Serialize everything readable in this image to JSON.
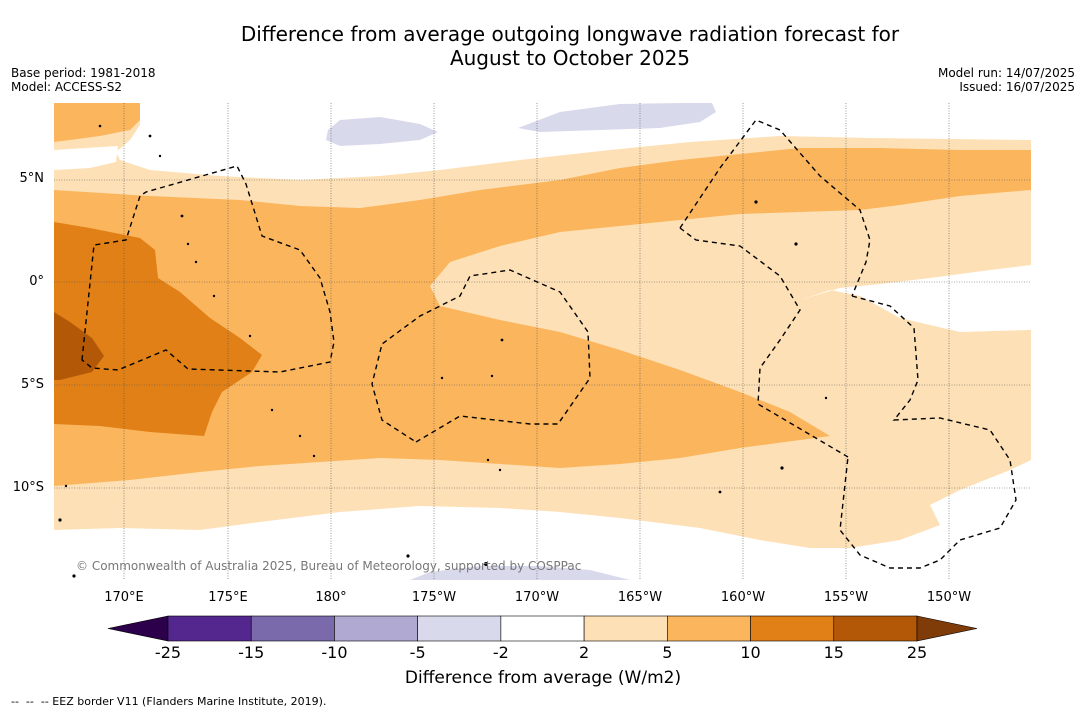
{
  "title": {
    "line1": "Difference from average outgoing longwave radiation forecast for",
    "line2": "August to October 2025"
  },
  "meta": {
    "base_period": "Base period: 1981-2018",
    "model": "Model: ACCESS-S2",
    "model_run": "Model run: 14/07/2025",
    "issued": "Issued: 16/07/2025"
  },
  "map": {
    "lat_labels": [
      "5°N",
      "0°",
      "5°S",
      "10°S"
    ],
    "lon_labels": [
      "170°E",
      "175°E",
      "180°",
      "175°W",
      "170°W",
      "165°W",
      "160°W",
      "155°W",
      "150°W"
    ],
    "copyright": "© Commonwealth of Australia 2025, Bureau of Meteorology, supported by COSPPac"
  },
  "colorbar": {
    "ticks": [
      "-25",
      "-15",
      "-10",
      "-5",
      "-2",
      "2",
      "5",
      "10",
      "15",
      "25"
    ],
    "colors": [
      "#54278f",
      "#7b6aab",
      "#b0a9d1",
      "#d9d9ec",
      "#ffffff",
      "#fde0b5",
      "#fbb55d",
      "#e08016",
      "#b35806"
    ],
    "under_color": "#2d004b",
    "over_color": "#7f3b08",
    "label": "Difference from average (W/m2)"
  },
  "legend": {
    "eez": "--  --  -- EEZ border V11 (Flanders Marine Institute, 2019)."
  }
}
